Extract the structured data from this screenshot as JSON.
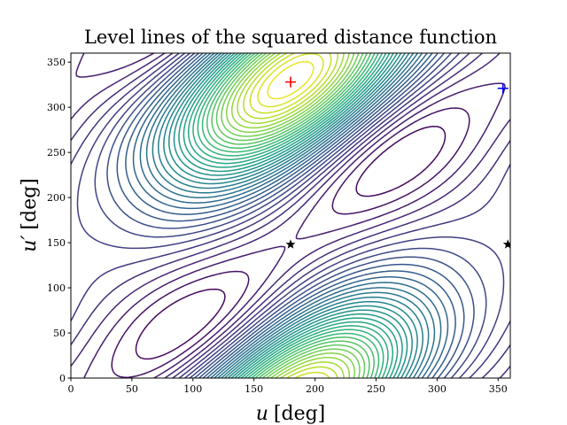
{
  "chart_data": {
    "type": "contour",
    "title": "Level lines of the squared distance function",
    "xlabel_var": "u",
    "ylabel_var": "u′",
    "unit_label": "[deg]",
    "xlim": [
      0,
      360
    ],
    "ylim": [
      0,
      360
    ],
    "xticks": [
      0,
      50,
      100,
      150,
      200,
      250,
      300,
      350
    ],
    "yticks": [
      0,
      50,
      100,
      150,
      200,
      250,
      300,
      350
    ],
    "colormap": "viridis",
    "num_levels": 36,
    "markers": [
      {
        "name": "maximum",
        "symbol": "plus",
        "color": "#ff0000",
        "x": 180,
        "y": 328
      },
      {
        "name": "secondary-point",
        "symbol": "plus",
        "color": "#0000ff",
        "x": 354,
        "y": 321
      },
      {
        "name": "minimum-1",
        "symbol": "star",
        "color": "#000000",
        "x": 180,
        "y": 148
      },
      {
        "name": "minimum-2",
        "symbol": "star",
        "color": "#000000",
        "x": 358,
        "y": 148
      }
    ]
  }
}
